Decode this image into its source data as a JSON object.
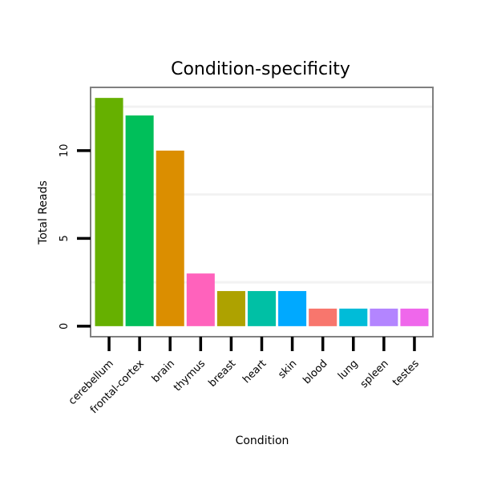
{
  "chart_data": {
    "type": "bar",
    "title": "Condition-specificity",
    "xlabel": "Condition",
    "ylabel": "Total Reads",
    "categories": [
      "cerebellum",
      "frontal-cortex",
      "brain",
      "thymus",
      "breast",
      "heart",
      "skin",
      "blood",
      "lung",
      "spleen",
      "testes"
    ],
    "values": [
      13,
      12,
      10,
      3,
      2,
      2,
      2,
      1,
      1,
      1,
      1
    ],
    "colors": [
      "#66B000",
      "#00BF5A",
      "#DB8E00",
      "#FF62BC",
      "#AEA200",
      "#00C0A5",
      "#00A9FF",
      "#F8766D",
      "#00BCD8",
      "#B385FF",
      "#EF67EB"
    ],
    "yticks": [
      0,
      5,
      10
    ],
    "ylim": [
      -0.6,
      13.6
    ],
    "grid": "y-minor-faint",
    "legend": "none"
  }
}
